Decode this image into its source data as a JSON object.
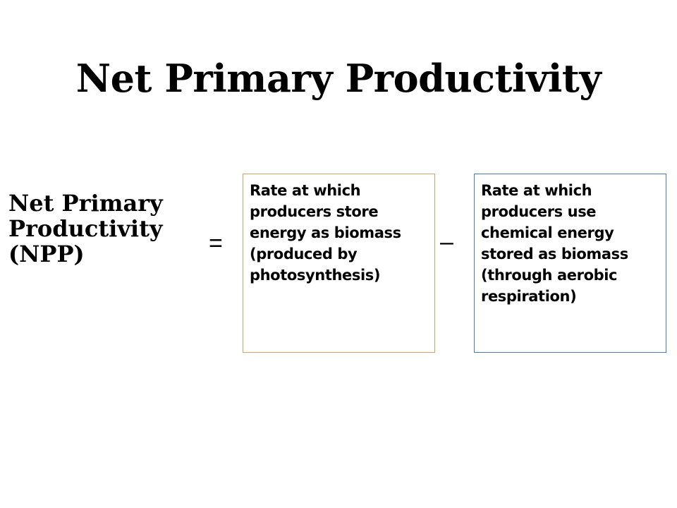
{
  "title": "Net Primary Productivity",
  "equation": {
    "term_lines": [
      "Net Primary",
      "Productivity",
      "(NPP)"
    ],
    "equals_sign": "=",
    "minus_sign": "–",
    "gross_box": {
      "lines": [
        "Rate at which",
        "producers store",
        "energy as biomass",
        "(produced by",
        "photosynthesis)"
      ],
      "border_color": "#d4a35f"
    },
    "respiration_box": {
      "lines": [
        "Rate at which",
        "producers use",
        "chemical energy",
        "stored as biomass",
        "(through aerobic",
        "respiration)"
      ],
      "border_color": "#4a7ab5"
    }
  }
}
